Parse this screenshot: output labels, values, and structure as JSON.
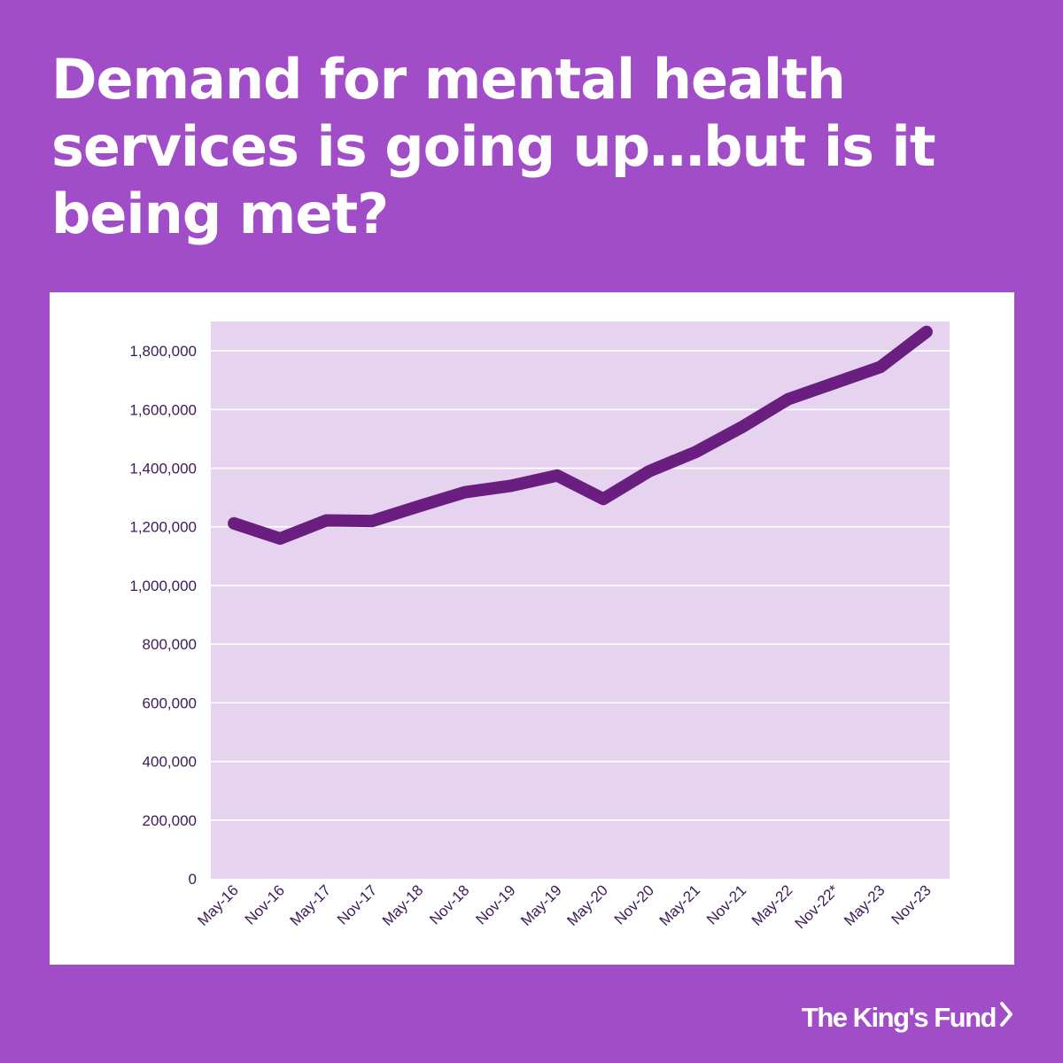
{
  "headline": "Demand for mental health services is going up…but is it being met?",
  "brand": {
    "logo_text": "The King's Fund",
    "logo_icon": "chevron-right-icon"
  },
  "colors": {
    "background": "#a04dc7",
    "plot_bg": "#e6d3f0",
    "line": "#6a1f80",
    "text": "#3d1a58"
  },
  "chart_data": {
    "type": "line",
    "title": "",
    "xlabel": "",
    "ylabel": "",
    "ylim": [
      0,
      1900000
    ],
    "yticks": [
      0,
      200000,
      400000,
      600000,
      800000,
      1000000,
      1200000,
      1400000,
      1600000,
      1800000
    ],
    "ytick_labels": [
      "0",
      "200,000",
      "400,000",
      "600,000",
      "800,000",
      "1,000,000",
      "1,200,000",
      "1,400,000",
      "1,600,000",
      "1,800,000"
    ],
    "grid": true,
    "legend": "none",
    "categories": [
      "May-16",
      "Nov-16",
      "May-17",
      "Nov-17",
      "May-18",
      "Nov-18",
      "Nov-19",
      "May-19",
      "May-20",
      "Nov-20",
      "May-21",
      "Nov-21",
      "May-22",
      "Nov-22*",
      "May-23",
      "Nov-23"
    ],
    "series": [
      {
        "values": [
          1212000,
          1160000,
          1222000,
          1220000,
          1270000,
          1318000,
          1340000,
          1375000,
          1295000,
          1390000,
          1455000,
          1540000,
          1635000,
          1690000,
          1745000,
          1865000
        ]
      }
    ]
  }
}
